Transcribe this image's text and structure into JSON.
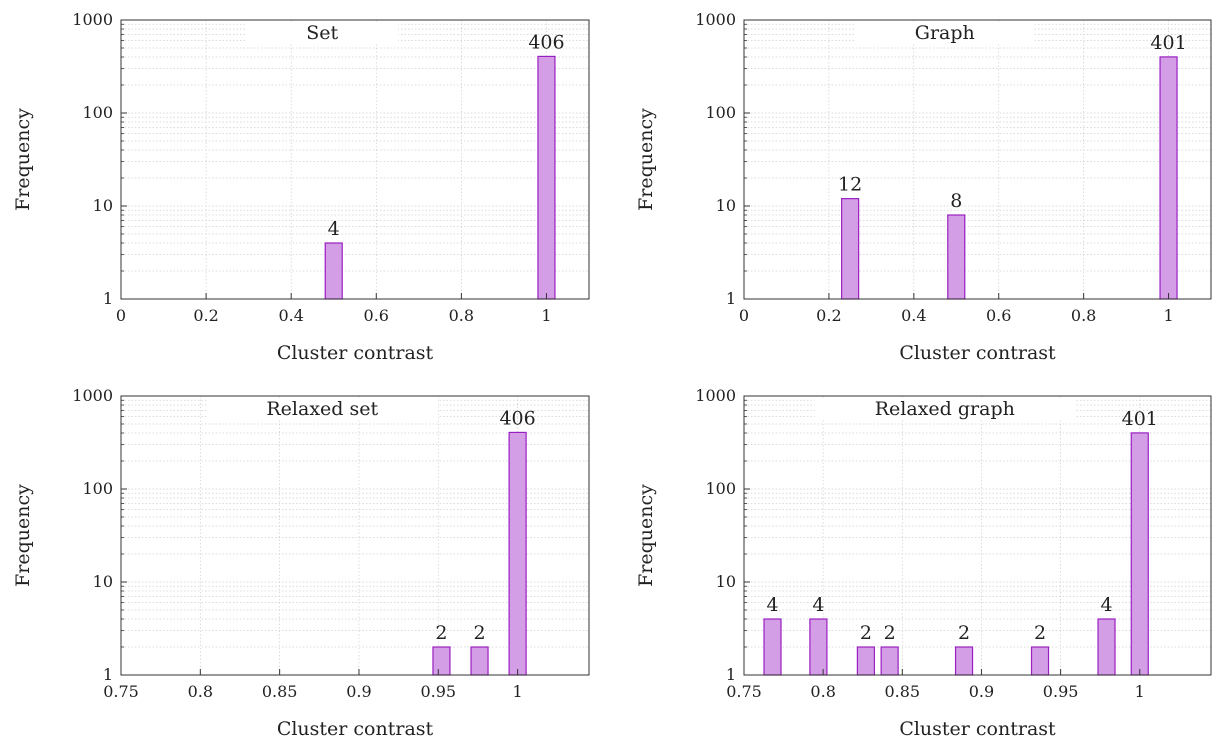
{
  "chart_data": [
    {
      "type": "bar",
      "title": "Set",
      "xlabel": "Cluster contrast",
      "ylabel": "Frequency",
      "yscale": "log",
      "ylim": [
        1,
        1000
      ],
      "xlim": [
        0,
        1.1
      ],
      "xticks": [
        0,
        0.2,
        0.4,
        0.6,
        0.8,
        1
      ],
      "xtick_labels": [
        "0",
        "0.2",
        "0.4",
        "0.6",
        "0.8",
        "1"
      ],
      "yticks": [
        1,
        10,
        100,
        1000
      ],
      "ytick_labels": [
        "1",
        "10",
        "100",
        "1000"
      ],
      "bars": [
        {
          "x": 0.5,
          "value": 4,
          "label": "4"
        },
        {
          "x": 1.0,
          "value": 406,
          "label": "406"
        }
      ]
    },
    {
      "type": "bar",
      "title": "Graph",
      "xlabel": "Cluster contrast",
      "ylabel": "Frequency",
      "yscale": "log",
      "ylim": [
        1,
        1000
      ],
      "xlim": [
        0,
        1.1
      ],
      "xticks": [
        0,
        0.2,
        0.4,
        0.6,
        0.8,
        1
      ],
      "xtick_labels": [
        "0",
        "0.2",
        "0.4",
        "0.6",
        "0.8",
        "1"
      ],
      "yticks": [
        1,
        10,
        100,
        1000
      ],
      "ytick_labels": [
        "1",
        "10",
        "100",
        "1000"
      ],
      "bars": [
        {
          "x": 0.25,
          "value": 12,
          "label": "12"
        },
        {
          "x": 0.5,
          "value": 8,
          "label": "8"
        },
        {
          "x": 1.0,
          "value": 401,
          "label": "401"
        }
      ]
    },
    {
      "type": "bar",
      "title": "Relaxed set",
      "xlabel": "Cluster contrast",
      "ylabel": "Frequency",
      "yscale": "log",
      "ylim": [
        1,
        1000
      ],
      "xlim": [
        0.75,
        1.045
      ],
      "xticks": [
        0.75,
        0.8,
        0.85,
        0.9,
        0.95,
        1
      ],
      "xtick_labels": [
        "0.75",
        "0.8",
        "0.85",
        "0.9",
        "0.95",
        "1"
      ],
      "yticks": [
        1,
        10,
        100,
        1000
      ],
      "ytick_labels": [
        "1",
        "10",
        "100",
        "1000"
      ],
      "bars": [
        {
          "x": 0.952,
          "value": 2,
          "label": "2"
        },
        {
          "x": 0.976,
          "value": 2,
          "label": "2"
        },
        {
          "x": 1.0,
          "value": 406,
          "label": "406"
        }
      ]
    },
    {
      "type": "bar",
      "title": "Relaxed graph",
      "xlabel": "Cluster contrast",
      "ylabel": "Frequency",
      "yscale": "log",
      "ylim": [
        1,
        1000
      ],
      "xlim": [
        0.75,
        1.045
      ],
      "xticks": [
        0.75,
        0.8,
        0.85,
        0.9,
        0.95,
        1
      ],
      "xtick_labels": [
        "0.75",
        "0.8",
        "0.85",
        "0.9",
        "0.95",
        "1"
      ],
      "yticks": [
        1,
        10,
        100,
        1000
      ],
      "ytick_labels": [
        "1",
        "10",
        "100",
        "1000"
      ],
      "bars": [
        {
          "x": 0.768,
          "value": 4,
          "label": "4"
        },
        {
          "x": 0.797,
          "value": 4,
          "label": "4"
        },
        {
          "x": 0.827,
          "value": 2,
          "label": "2"
        },
        {
          "x": 0.842,
          "value": 2,
          "label": "2"
        },
        {
          "x": 0.889,
          "value": 2,
          "label": "2"
        },
        {
          "x": 0.937,
          "value": 2,
          "label": "2"
        },
        {
          "x": 0.979,
          "value": 4,
          "label": "4"
        },
        {
          "x": 1.0,
          "value": 401,
          "label": "401"
        }
      ]
    }
  ],
  "colors": {
    "bar_fill": "#d49ee6",
    "bar_stroke": "#9a1fc2",
    "grid": "#cfcfcf"
  }
}
